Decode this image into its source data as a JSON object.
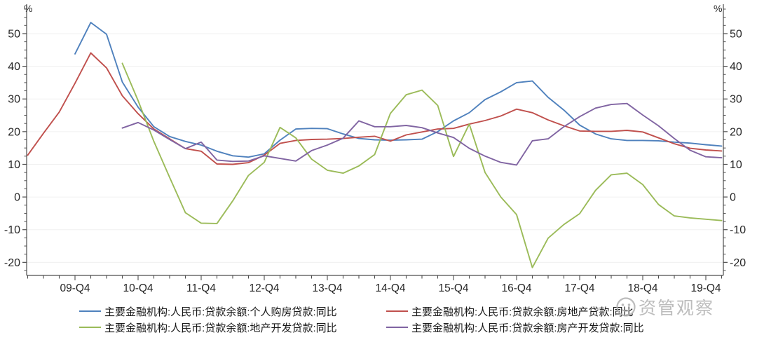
{
  "watermark": {
    "text": "资管观察",
    "logo": "wechat-account-logo",
    "color": "#b3b3b3"
  },
  "axes": {
    "y_unit_left": "%",
    "y_unit_right": "%",
    "tick_color": "#4d4d4d",
    "grid_color": "#f0f0f0",
    "label_color": "#262626"
  },
  "chart_data": {
    "type": "line",
    "title": "",
    "xlabel": "",
    "ylabel": "%",
    "grid": "horizontal-faint",
    "legend_position": "bottom",
    "ylim": [
      -24,
      59
    ],
    "yticks": [
      -20,
      -10,
      0,
      10,
      20,
      30,
      40,
      50
    ],
    "y_minor_step": 2.5,
    "y_unit": "%",
    "x_quarters": [
      "09-Q1",
      "09-Q2",
      "09-Q3",
      "09-Q4",
      "10-Q1",
      "10-Q2",
      "10-Q3",
      "10-Q4",
      "11-Q1",
      "11-Q2",
      "11-Q3",
      "11-Q4",
      "12-Q1",
      "12-Q2",
      "12-Q3",
      "12-Q4",
      "13-Q1",
      "13-Q2",
      "13-Q3",
      "13-Q4",
      "14-Q1",
      "14-Q2",
      "14-Q3",
      "14-Q4",
      "15-Q1",
      "15-Q2",
      "15-Q3",
      "15-Q4",
      "16-Q1",
      "16-Q2",
      "16-Q3",
      "16-Q4",
      "17-Q1",
      "17-Q2",
      "17-Q3",
      "17-Q4",
      "18-Q1",
      "18-Q2",
      "18-Q3",
      "18-Q4",
      "19-Q1",
      "19-Q2",
      "19-Q3",
      "19-Q4",
      "20-Q1"
    ],
    "x_tick_indices": [
      3,
      7,
      11,
      15,
      19,
      23,
      27,
      31,
      35,
      39,
      43
    ],
    "x_tick_labels": [
      "09-Q4",
      "10-Q4",
      "11-Q4",
      "12-Q4",
      "13-Q4",
      "14-Q4",
      "15-Q4",
      "16-Q4",
      "17-Q4",
      "18-Q4",
      "19-Q4"
    ],
    "series": [
      {
        "name": "personal-housing-loans-yoy",
        "label": "主要金融机构:人民币:贷款余额:个人购房贷款:同比",
        "color": "#4f81bd",
        "start_index": 3,
        "values": [
          43.8,
          53.4,
          49.8,
          35.2,
          27.5,
          21.5,
          18.5,
          17.0,
          15.9,
          14.0,
          12.6,
          12.2,
          13.2,
          17.4,
          20.8,
          21.0,
          20.9,
          19.3,
          17.9,
          17.5,
          17.4,
          17.5,
          17.7,
          20.0,
          23.3,
          25.8,
          29.8,
          32.2,
          35.0,
          35.5,
          30.5,
          26.6,
          22.0,
          19.3,
          17.8,
          17.3,
          17.3,
          17.2,
          16.8,
          16.5,
          16.0,
          15.6
        ]
      },
      {
        "name": "real-estate-loans-yoy",
        "label": "主要金融机构:人民币:贷款余额:房地产贷款:同比",
        "color": "#c0504d",
        "start_index": 0,
        "values": [
          12.8,
          19.5,
          26.0,
          34.8,
          44.1,
          39.5,
          31.0,
          25.5,
          20.8,
          17.8,
          14.8,
          14.0,
          10.1,
          10.0,
          10.5,
          12.8,
          16.4,
          17.3,
          17.6,
          17.7,
          17.9,
          18.3,
          18.6,
          17.1,
          19.0,
          19.9,
          20.8,
          21.0,
          22.3,
          23.4,
          24.8,
          26.9,
          25.8,
          23.6,
          21.8,
          20.2,
          20.1,
          20.1,
          20.4,
          19.9,
          18.1,
          16.3,
          14.9,
          14.4,
          14.1
        ]
      },
      {
        "name": "land-development-loans-yoy",
        "label": "主要金融机构:人民币:贷款余额:地产开发贷款:同比",
        "color": "#9bbb59",
        "start_index": 6,
        "values": [
          40.9,
          29.5,
          17.0,
          6.0,
          -4.8,
          -8.0,
          -8.1,
          -1.2,
          6.6,
          10.6,
          21.3,
          18.1,
          11.6,
          8.2,
          7.3,
          9.5,
          13.0,
          25.6,
          31.3,
          32.7,
          28.0,
          12.4,
          22.3,
          7.5,
          0.0,
          -5.4,
          -21.6,
          -12.6,
          -8.4,
          -5.1,
          2.0,
          6.8,
          7.3,
          3.8,
          -2.3,
          -5.8,
          -6.4,
          -6.8,
          -7.2
        ]
      },
      {
        "name": "housing-development-loans-yoy",
        "label": "主要金融机构:人民币:贷款余额:房产开发贷款:同比",
        "color": "#8064a2",
        "start_index": 6,
        "values": [
          21.1,
          22.8,
          20.5,
          17.6,
          14.8,
          16.8,
          11.3,
          10.9,
          11.0,
          12.6,
          11.8,
          11.0,
          14.2,
          15.9,
          18.0,
          23.3,
          21.5,
          21.5,
          21.9,
          21.2,
          19.6,
          18.2,
          14.9,
          12.5,
          10.6,
          9.8,
          17.2,
          17.8,
          21.5,
          24.6,
          27.2,
          28.3,
          28.6,
          25.1,
          21.8,
          17.9,
          14.3,
          12.3,
          12.0
        ]
      }
    ]
  }
}
